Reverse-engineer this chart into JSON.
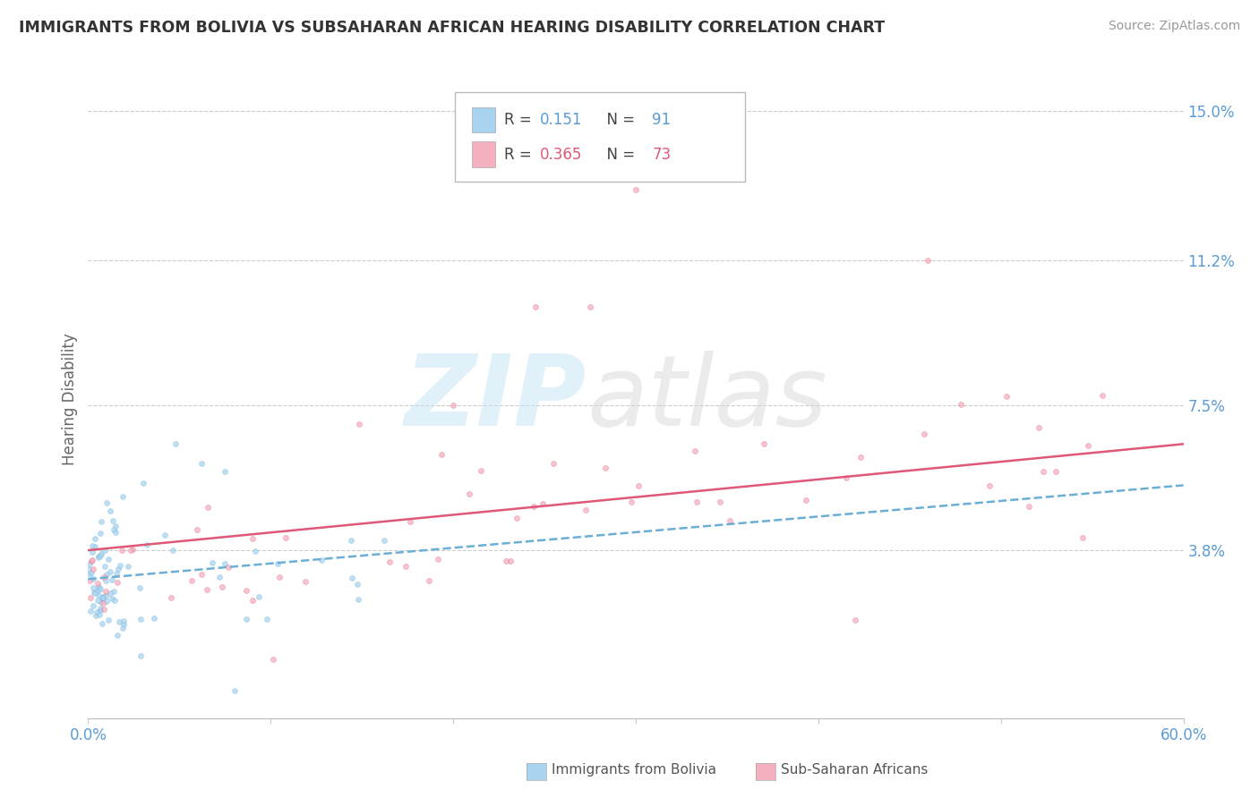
{
  "title": "IMMIGRANTS FROM BOLIVIA VS SUBSAHARAN AFRICAN HEARING DISABILITY CORRELATION CHART",
  "source": "Source: ZipAtlas.com",
  "ylabel": "Hearing Disability",
  "y_ticks": [
    0.0,
    0.038,
    0.075,
    0.112,
    0.15
  ],
  "y_tick_labels": [
    "",
    "3.8%",
    "7.5%",
    "11.2%",
    "15.0%"
  ],
  "x_lim": [
    0.0,
    0.6
  ],
  "y_lim": [
    -0.005,
    0.158
  ],
  "color_bolivia": "#a8d4f0",
  "color_bolivia_dark": "#6baed6",
  "color_africa": "#f5b0c0",
  "color_africa_dark": "#e05878",
  "color_accent": "#5b9bd5",
  "color_grid": "#cccccc",
  "color_title": "#333333",
  "color_source": "#999999",
  "color_ylabel": "#666666",
  "bolivia_r": 0.151,
  "africa_r": 0.365,
  "n_bolivia": 91,
  "n_africa": 73,
  "dot_size": 18,
  "dot_alpha": 0.75,
  "line_width": 1.8
}
